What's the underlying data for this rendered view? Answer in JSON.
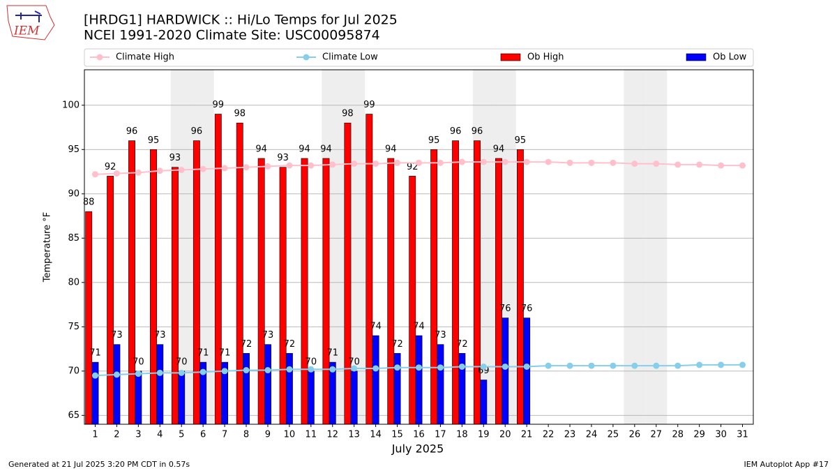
{
  "logo_text": "IEM",
  "footer_left": "Generated at 21 Jul 2025 3:20 PM CDT in 0.57s",
  "footer_right": "IEM Autoplot App #17",
  "chart_data": {
    "type": "bar",
    "title": "[HRDG1] HARDWICK :: Hi/Lo Temps for Jul 2025",
    "subtitle": "NCEI 1991-2020 Climate Site: USC00095874",
    "xlabel": "July 2025",
    "ylabel": "Temperature °F",
    "x": [
      1,
      2,
      3,
      4,
      5,
      6,
      7,
      8,
      9,
      10,
      11,
      12,
      13,
      14,
      15,
      16,
      17,
      18,
      19,
      20,
      21,
      22,
      23,
      24,
      25,
      26,
      27,
      28,
      29,
      30,
      31
    ],
    "xlim": [
      0.5,
      31.5
    ],
    "ylim": [
      64,
      104
    ],
    "yticks": [
      65,
      70,
      75,
      80,
      85,
      90,
      95,
      100
    ],
    "grid": true,
    "shaded_days": [
      5,
      6,
      12,
      13,
      19,
      20,
      26,
      27
    ],
    "legend": "top",
    "series": [
      {
        "name": "Climate High",
        "kind": "line",
        "color": "#ffc0cb",
        "values": [
          92.2,
          92.3,
          92.4,
          92.6,
          92.7,
          92.8,
          92.9,
          93.0,
          93.1,
          93.2,
          93.2,
          93.3,
          93.4,
          93.4,
          93.5,
          93.5,
          93.5,
          93.6,
          93.6,
          93.6,
          93.6,
          93.6,
          93.5,
          93.5,
          93.5,
          93.4,
          93.4,
          93.3,
          93.3,
          93.2,
          93.2
        ]
      },
      {
        "name": "Climate Low",
        "kind": "line",
        "color": "#87ceeb",
        "values": [
          69.5,
          69.6,
          69.7,
          69.8,
          69.8,
          69.9,
          70.0,
          70.1,
          70.1,
          70.2,
          70.2,
          70.2,
          70.3,
          70.3,
          70.4,
          70.4,
          70.4,
          70.5,
          70.5,
          70.5,
          70.5,
          70.6,
          70.6,
          70.6,
          70.6,
          70.6,
          70.6,
          70.6,
          70.7,
          70.7,
          70.7
        ]
      },
      {
        "name": "Ob High",
        "kind": "bar",
        "color": "#ff0000",
        "values": [
          88,
          92,
          96,
          95,
          93,
          96,
          99,
          98,
          94,
          93,
          94,
          94,
          98,
          99,
          94,
          92,
          95,
          96,
          96,
          94,
          95,
          null,
          null,
          null,
          null,
          null,
          null,
          null,
          null,
          null,
          null
        ]
      },
      {
        "name": "Ob Low",
        "kind": "bar",
        "color": "#0000ff",
        "values": [
          71,
          73,
          70,
          73,
          70,
          71,
          71,
          72,
          73,
          72,
          70,
          71,
          70,
          74,
          72,
          74,
          73,
          72,
          69,
          76,
          76,
          null,
          null,
          null,
          null,
          null,
          null,
          null,
          null,
          null,
          null
        ]
      }
    ]
  }
}
